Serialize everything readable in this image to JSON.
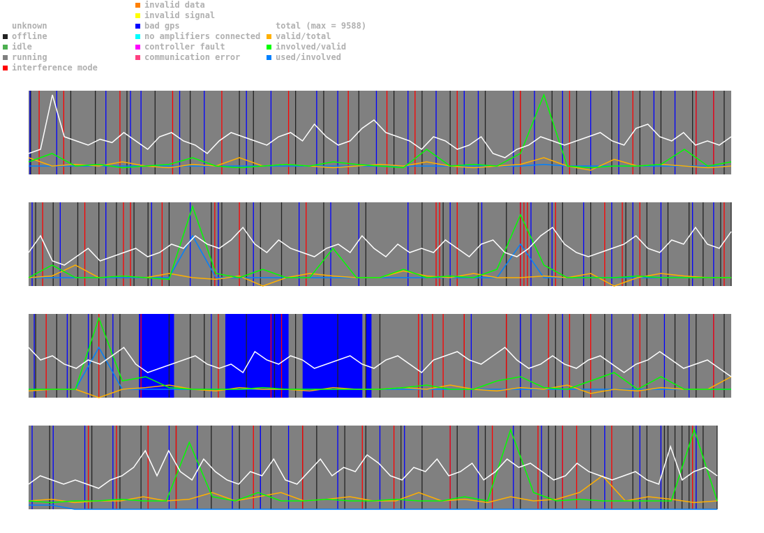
{
  "legend": {
    "status": [
      {
        "label": "unknown",
        "color": "#ffffff"
      },
      {
        "label": "offline",
        "color": "#222222"
      },
      {
        "label": "idle",
        "color": "#4caf50"
      },
      {
        "label": "running",
        "color": "#808080"
      },
      {
        "label": "interference mode",
        "color": "#ff0000"
      }
    ],
    "errors": [
      {
        "label": "invalid data",
        "color": "#ff8000"
      },
      {
        "label": "invalid signal",
        "color": "#ffff00"
      },
      {
        "label": "bad gps",
        "color": "#0000ff"
      },
      {
        "label": "no amplifiers connected",
        "color": "#00ffff"
      },
      {
        "label": "controller fault",
        "color": "#ff00ff"
      },
      {
        "label": "communication error",
        "color": "#ff4080"
      }
    ],
    "lines": [
      {
        "label": "total (max = 9588)",
        "color": "#ffffff"
      },
      {
        "label": "valid/total",
        "color": "#ffb000"
      },
      {
        "label": "involved/valid",
        "color": "#00ff00"
      },
      {
        "label": "used/involved",
        "color": "#0080ff"
      }
    ]
  },
  "chart_data": [
    {
      "type": "line",
      "xlim": [
        0,
        1000
      ],
      "ylim": [
        0,
        1
      ],
      "duration": 1000,
      "total": [
        0.25,
        0.3,
        0.95,
        0.45,
        0.4,
        0.35,
        0.42,
        0.38,
        0.5,
        0.4,
        0.3,
        0.45,
        0.5,
        0.4,
        0.35,
        0.25,
        0.4,
        0.5,
        0.45,
        0.4,
        0.35,
        0.45,
        0.5,
        0.4,
        0.6,
        0.45,
        0.35,
        0.4,
        0.55,
        0.65,
        0.5,
        0.45,
        0.4,
        0.3,
        0.45,
        0.4,
        0.3,
        0.35,
        0.45,
        0.25,
        0.2,
        0.3,
        0.35,
        0.45,
        0.4,
        0.35,
        0.4,
        0.45,
        0.5,
        0.4,
        0.35,
        0.55,
        0.6,
        0.45,
        0.4,
        0.5,
        0.35,
        0.4,
        0.35,
        0.45
      ],
      "valid_total": [
        0.2,
        0.1,
        0.12,
        0.1,
        0.15,
        0.1,
        0.08,
        0.12,
        0.1,
        0.2,
        0.1,
        0.12,
        0.1,
        0.08,
        0.1,
        0.12,
        0.1,
        0.15,
        0.1,
        0.08,
        0.1,
        0.12,
        0.2,
        0.1,
        0.05,
        0.18,
        0.1,
        0.12,
        0.1,
        0.08,
        0.1
      ],
      "involved_valid": [
        0.15,
        0.25,
        0.1,
        0.12,
        0.08,
        0.1,
        0.12,
        0.2,
        0.1,
        0.08,
        0.1,
        0.12,
        0.1,
        0.15,
        0.12,
        0.1,
        0.08,
        0.3,
        0.1,
        0.12,
        0.1,
        0.25,
        0.95,
        0.1,
        0.08,
        0.1,
        0.1,
        0.12,
        0.3,
        0.1,
        0.15
      ],
      "used_involved": [
        0.1,
        0.1,
        0.1,
        0.1,
        0.1,
        0.1,
        0.1,
        0.1,
        0.1,
        0.1,
        0.1,
        0.1,
        0.1,
        0.1,
        0.1,
        0.1,
        0.1,
        0.1,
        0.1,
        0.1,
        0.1,
        0.1,
        0.12,
        0.1,
        0.1,
        0.1,
        0.1,
        0.1,
        0.1,
        0.1,
        0.1
      ],
      "offline": [
        3,
        60,
        95,
        140,
        180,
        230,
        300,
        320,
        380,
        420,
        470,
        520,
        560,
        600,
        650,
        700,
        745,
        780,
        830,
        870,
        900,
        945,
        990
      ],
      "bad_gps": [
        2,
        40,
        110,
        145,
        160,
        215,
        250,
        310,
        345,
        410,
        440,
        495,
        540,
        580,
        620,
        640,
        690,
        720,
        760,
        800,
        840,
        890,
        920,
        950,
        975
      ],
      "interference": [
        15,
        50,
        130,
        205,
        275,
        370,
        455,
        510,
        550,
        610,
        700,
        770,
        860,
        950,
        975,
        1005
      ],
      "blocks": []
    },
    {
      "type": "line",
      "xlim": [
        0,
        1000
      ],
      "ylim": [
        0,
        1
      ],
      "duration": 1000,
      "total": [
        0.4,
        0.6,
        0.3,
        0.25,
        0.35,
        0.45,
        0.3,
        0.35,
        0.4,
        0.45,
        0.35,
        0.4,
        0.5,
        0.45,
        0.6,
        0.5,
        0.45,
        0.55,
        0.7,
        0.5,
        0.4,
        0.55,
        0.45,
        0.4,
        0.35,
        0.45,
        0.5,
        0.4,
        0.6,
        0.45,
        0.35,
        0.5,
        0.4,
        0.45,
        0.4,
        0.55,
        0.45,
        0.35,
        0.5,
        0.55,
        0.4,
        0.35,
        0.45,
        0.6,
        0.7,
        0.5,
        0.4,
        0.35,
        0.4,
        0.45,
        0.5,
        0.6,
        0.45,
        0.4,
        0.55,
        0.5,
        0.7,
        0.5,
        0.45,
        0.65
      ],
      "valid_total": [
        0.1,
        0.12,
        0.25,
        0.1,
        0.12,
        0.1,
        0.15,
        0.1,
        0.08,
        0.12,
        0.0,
        0.1,
        0.15,
        0.12,
        0.1,
        0.1,
        0.18,
        0.12,
        0.1,
        0.15,
        0.1,
        0.1,
        0.12,
        0.1,
        0.15,
        0.0,
        0.1,
        0.15,
        0.12,
        0.1,
        0.1
      ],
      "involved_valid": [
        0.1,
        0.25,
        0.1,
        0.1,
        0.12,
        0.1,
        0.08,
        0.95,
        0.15,
        0.1,
        0.2,
        0.1,
        0.1,
        0.45,
        0.1,
        0.1,
        0.2,
        0.1,
        0.12,
        0.1,
        0.2,
        0.85,
        0.25,
        0.1,
        0.1,
        0.1,
        0.12,
        0.1,
        0.1,
        0.1,
        0.1
      ],
      "used_involved": [
        0.1,
        0.1,
        0.1,
        0.1,
        0.1,
        0.1,
        0.1,
        0.6,
        0.1,
        0.1,
        0.1,
        0.1,
        0.1,
        0.1,
        0.1,
        0.1,
        0.1,
        0.1,
        0.1,
        0.1,
        0.1,
        0.5,
        0.1,
        0.1,
        0.1,
        0.1,
        0.1,
        0.1,
        0.1,
        0.1,
        0.1
      ],
      "offline": [
        10,
        35,
        70,
        100,
        125,
        150,
        170,
        200,
        260,
        275,
        310,
        330,
        360,
        420,
        480,
        560,
        590,
        640,
        680,
        700,
        740,
        760,
        800,
        850,
        880,
        910,
        940,
        960,
        985,
        1000
      ],
      "bad_gps": [
        5,
        45,
        110,
        175,
        230,
        270,
        320,
        385,
        430,
        470,
        540,
        600,
        645,
        700,
        715,
        745,
        790,
        830,
        860,
        900,
        945,
        975
      ],
      "interference": [
        20,
        80,
        135,
        145,
        190,
        265,
        300,
        395,
        580,
        585,
        610,
        700,
        710,
        705,
        750,
        820,
        845,
        870,
        990
      ],
      "blocks": []
    },
    {
      "type": "line",
      "xlim": [
        0,
        1000
      ],
      "ylim": [
        0,
        1
      ],
      "duration": 1000,
      "total": [
        0.6,
        0.45,
        0.5,
        0.4,
        0.35,
        0.45,
        0.4,
        0.5,
        0.6,
        0.4,
        0.3,
        0.35,
        0.4,
        0.45,
        0.5,
        0.4,
        0.35,
        0.4,
        0.3,
        0.55,
        0.45,
        0.4,
        0.5,
        0.45,
        0.35,
        0.4,
        0.45,
        0.5,
        0.4,
        0.35,
        0.45,
        0.5,
        0.4,
        0.3,
        0.45,
        0.5,
        0.55,
        0.45,
        0.4,
        0.5,
        0.6,
        0.45,
        0.35,
        0.4,
        0.5,
        0.4,
        0.35,
        0.45,
        0.5,
        0.4,
        0.3,
        0.4,
        0.45,
        0.55,
        0.45,
        0.35,
        0.4,
        0.45,
        0.35,
        0.25
      ],
      "valid_total": [
        0.08,
        0.1,
        0.1,
        0.0,
        0.1,
        0.12,
        0.15,
        0.1,
        0.08,
        0.12,
        0.1,
        0.1,
        0.08,
        0.12,
        0.1,
        0.1,
        0.12,
        0.1,
        0.15,
        0.1,
        0.08,
        0.12,
        0.1,
        0.15,
        0.05,
        0.1,
        0.08,
        0.12,
        0.1,
        0.1,
        0.25
      ],
      "involved_valid": [
        0.1,
        0.1,
        0.1,
        0.95,
        0.2,
        0.25,
        0.12,
        0.1,
        0.1,
        0.1,
        0.12,
        0.1,
        0.1,
        0.1,
        0.1,
        0.1,
        0.12,
        0.15,
        0.1,
        0.1,
        0.2,
        0.25,
        0.12,
        0.1,
        0.2,
        0.3,
        0.1,
        0.25,
        0.1,
        0.1,
        0.1
      ],
      "used_involved": [
        0.1,
        0.1,
        0.1,
        0.6,
        0.1,
        0.1,
        0.1,
        0.1,
        0.1,
        0.1,
        0.1,
        0.1,
        0.1,
        0.1,
        0.1,
        0.1,
        0.1,
        0.1,
        0.1,
        0.1,
        0.1,
        0.1,
        0.1,
        0.1,
        0.1,
        0.1,
        0.1,
        0.1,
        0.1,
        0.1,
        0.1
      ],
      "offline": [
        10,
        40,
        60,
        90,
        110,
        130,
        200,
        230,
        250,
        310,
        350,
        380,
        440,
        480,
        500,
        560,
        620,
        680,
        700,
        750,
        790,
        820,
        880,
        920,
        950,
        990
      ],
      "bad_gps": [
        8,
        55,
        85,
        120,
        170,
        260,
        305,
        560,
        630,
        700,
        715,
        760,
        830,
        860,
        905,
        940,
        975
      ],
      "interference": [
        25,
        100,
        160,
        270,
        345,
        360,
        555,
        575,
        590,
        620,
        680,
        740,
        770,
        800,
        870,
        975
      ],
      "blocks": [
        [
          157,
          207
        ],
        [
          280,
          370
        ],
        [
          390,
          475
        ],
        [
          480,
          488
        ]
      ]
    },
    {
      "type": "line",
      "xlim": [
        0,
        1000
      ],
      "ylim": [
        0,
        1
      ],
      "duration": 980,
      "total": [
        0.3,
        0.4,
        0.35,
        0.3,
        0.35,
        0.3,
        0.25,
        0.35,
        0.4,
        0.5,
        0.7,
        0.4,
        0.7,
        0.45,
        0.35,
        0.6,
        0.45,
        0.35,
        0.3,
        0.45,
        0.4,
        0.6,
        0.35,
        0.3,
        0.45,
        0.6,
        0.4,
        0.5,
        0.45,
        0.65,
        0.55,
        0.4,
        0.35,
        0.5,
        0.45,
        0.6,
        0.4,
        0.45,
        0.55,
        0.35,
        0.45,
        0.6,
        0.5,
        0.55,
        0.45,
        0.35,
        0.4,
        0.55,
        0.45,
        0.4,
        0.35,
        0.4,
        0.45,
        0.35,
        0.3,
        0.75,
        0.35,
        0.45,
        0.5,
        0.4
      ],
      "valid_total": [
        0.1,
        0.12,
        0.08,
        0.1,
        0.1,
        0.15,
        0.1,
        0.12,
        0.2,
        0.1,
        0.15,
        0.2,
        0.1,
        0.12,
        0.15,
        0.1,
        0.1,
        0.2,
        0.1,
        0.12,
        0.08,
        0.15,
        0.1,
        0.12,
        0.2,
        0.4,
        0.1,
        0.15,
        0.12,
        0.08,
        0.1
      ],
      "involved_valid": [
        0.1,
        0.08,
        0.1,
        0.1,
        0.12,
        0.1,
        0.1,
        0.8,
        0.15,
        0.1,
        0.2,
        0.1,
        0.1,
        0.12,
        0.1,
        0.1,
        0.12,
        0.1,
        0.1,
        0.15,
        0.1,
        0.95,
        0.2,
        0.1,
        0.12,
        0.1,
        0.1,
        0.1,
        0.1,
        0.95,
        0.1
      ],
      "used_involved": [
        0.05,
        0.05,
        0.0,
        0.0,
        0.0,
        0.0,
        0.0,
        0.0,
        0.0,
        0.0,
        0.0,
        0.0,
        0.0,
        0.0,
        0.0,
        0.0,
        0.0,
        0.0,
        0.0,
        0.0,
        0.0,
        0.0,
        0.0,
        0.0,
        0.0,
        0.0,
        0.0,
        0.0,
        0.0,
        0.0,
        0.0
      ],
      "offline": [
        30,
        90,
        130,
        160,
        210,
        260,
        300,
        330,
        345,
        390,
        410,
        450,
        480,
        530,
        560,
        610,
        650,
        700,
        740,
        750,
        800,
        860,
        880,
        900,
        905,
        910,
        920,
        930,
        940,
        950,
        960,
        980
      ],
      "bad_gps": [
        5,
        35,
        80,
        120,
        200,
        240,
        290,
        330,
        370,
        440,
        500,
        535,
        600,
        640,
        690,
        730,
        760,
        820,
        870,
        900,
        950
      ],
      "interference": [
        85,
        125,
        170,
        210,
        320,
        390,
        475,
        520,
        600,
        660,
        725,
        760,
        780,
        830,
        945
      ],
      "blocks": []
    }
  ]
}
